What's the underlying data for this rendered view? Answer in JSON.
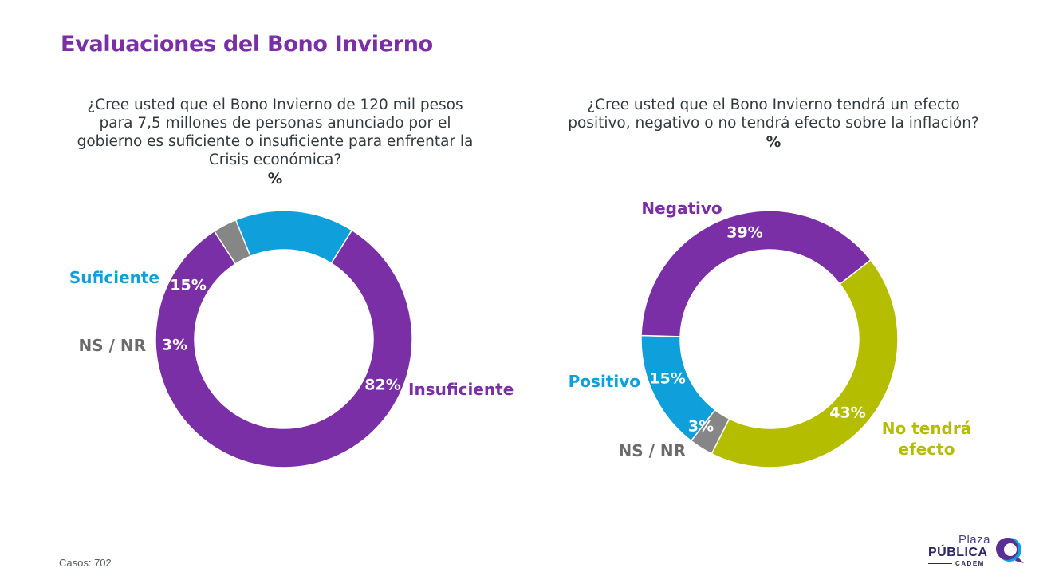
{
  "title": "Evaluaciones del Bono Invierno",
  "footer": "Casos: 702",
  "logo": {
    "line1": "Plaza",
    "line2": "PÚBLICA",
    "line3": "CADEM",
    "icon": "speech-bubble-icon"
  },
  "colors": {
    "purple": "#7b2fa6",
    "blue": "#0fa0dc",
    "gray": "#868686",
    "olive": "#b4bd00"
  },
  "chart_data": [
    {
      "type": "pie",
      "style": "donut",
      "question": "¿Cree usted que el Bono Invierno de 120 mil pesos para 7,5 millones de personas anunciado por el gobierno es suficiente o insuficiente para enfrentar la Crisis económica?",
      "unit": "%",
      "slices": [
        {
          "label": "Insuficiente",
          "value": 82,
          "display": "82%",
          "color": "#7b2fa6"
        },
        {
          "label": "NS / NR",
          "value": 3,
          "display": "3%",
          "color": "#868686"
        },
        {
          "label": "Suficiente",
          "value": 15,
          "display": "15%",
          "color": "#0fa0dc"
        }
      ]
    },
    {
      "type": "pie",
      "style": "donut",
      "question": "¿Cree usted que el Bono Invierno tendrá un efecto positivo, negativo o no tendrá efecto sobre la inflación?",
      "unit": "%",
      "slices": [
        {
          "label": "No tendrá efecto",
          "value": 43,
          "display": "43%",
          "color": "#b4bd00"
        },
        {
          "label": "NS / NR",
          "value": 3,
          "display": "3%",
          "color": "#868686"
        },
        {
          "label": "Positivo",
          "value": 15,
          "display": "15%",
          "color": "#0fa0dc"
        },
        {
          "label": "Negativo",
          "value": 39,
          "display": "39%",
          "color": "#7b2fa6"
        }
      ]
    }
  ]
}
